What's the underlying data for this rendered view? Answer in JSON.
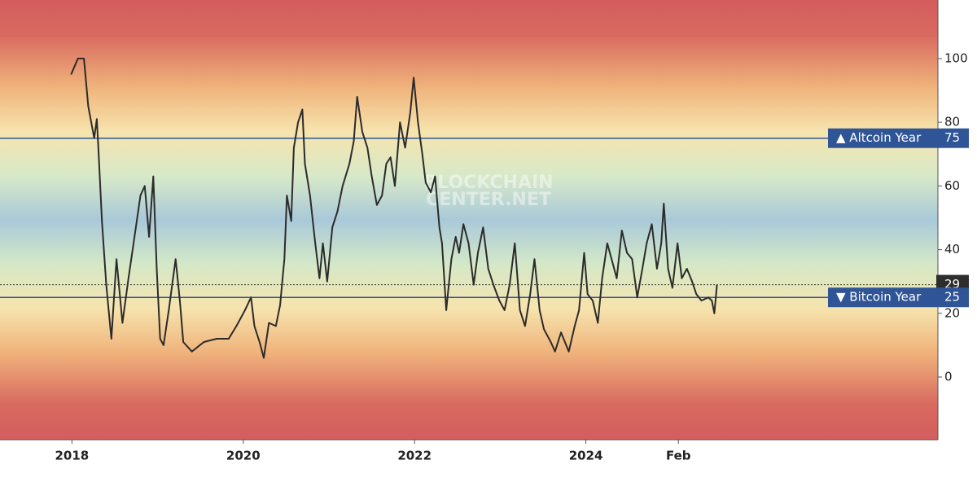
{
  "chart_data": {
    "type": "line",
    "watermark": [
      "BLOCKCHAIN",
      "CENTER.NET"
    ],
    "x": [
      2017.99,
      2018.07,
      2018.14,
      2018.19,
      2018.26,
      2018.29,
      2018.31,
      2018.35,
      2018.4,
      2018.46,
      2018.52,
      2018.59,
      2018.66,
      2018.73,
      2018.8,
      2018.85,
      2018.9,
      2018.95,
      2018.99,
      2019.03,
      2019.07,
      2019.13,
      2019.21,
      2019.26,
      2019.3,
      2019.4,
      2019.54,
      2019.69,
      2019.83,
      2019.92,
      2020.02,
      2020.09,
      2020.13,
      2020.19,
      2020.24,
      2020.3,
      2020.38,
      2020.43,
      2020.48,
      2020.51,
      2020.56,
      2020.59,
      2020.64,
      2020.69,
      2020.72,
      2020.78,
      2020.84,
      2020.89,
      2020.93,
      2020.98,
      2021.04,
      2021.1,
      2021.16,
      2021.24,
      2021.29,
      2021.33,
      2021.39,
      2021.45,
      2021.5,
      2021.56,
      2021.62,
      2021.67,
      2021.72,
      2021.77,
      2021.83,
      2021.89,
      2021.95,
      2021.99,
      2022.04,
      2022.09,
      2022.13,
      2022.19,
      2022.24,
      2022.29,
      2022.32,
      2022.37,
      2022.43,
      2022.48,
      2022.52,
      2022.57,
      2022.63,
      2022.69,
      2022.74,
      2022.8,
      2022.86,
      2022.92,
      2022.99,
      2023.05,
      2023.11,
      2023.17,
      2023.23,
      2023.29,
      2023.35,
      2023.4,
      2023.46,
      2023.51,
      2023.59,
      2023.64,
      2023.71,
      2023.8,
      2023.87,
      2023.92,
      2023.98,
      2024.02,
      2024.08,
      2024.14,
      2024.19,
      2024.25,
      2024.3,
      2024.36,
      2024.42,
      2024.48,
      2024.54,
      2024.6,
      2024.66,
      2024.71,
      2024.77,
      2024.83,
      2024.88,
      2024.91,
      2024.96,
      2025.01,
      2025.07,
      2025.12,
      2025.18,
      2025.24,
      2025.29,
      2025.35,
      2025.43,
      2025.47,
      2025.5,
      2025.53
    ],
    "values": [
      95,
      100,
      100,
      85,
      75,
      81,
      71,
      49,
      29,
      12,
      37,
      17,
      31,
      44,
      57,
      60,
      44,
      63,
      34,
      12,
      10,
      21,
      37,
      24,
      11,
      8,
      11,
      12,
      12,
      16,
      21,
      25,
      16,
      11,
      6,
      17,
      16,
      22.5,
      37,
      57,
      49,
      72,
      80,
      84,
      67,
      57,
      42,
      31,
      42,
      30,
      47,
      52,
      60,
      67,
      74,
      88,
      77,
      72,
      63,
      54,
      57,
      67,
      69,
      60,
      80,
      72,
      83,
      94,
      80,
      70,
      61,
      58,
      63,
      47,
      42,
      21,
      37,
      44,
      39,
      48,
      42,
      29,
      39,
      47,
      34,
      29,
      24,
      21,
      29,
      42,
      21,
      16,
      26,
      37,
      21,
      15,
      11,
      8,
      14,
      8,
      16,
      21,
      39,
      26,
      24,
      17,
      31,
      42,
      37,
      31,
      46,
      39,
      37,
      25,
      34,
      42,
      48,
      34,
      42,
      54.5,
      34,
      28,
      42,
      31,
      34,
      30,
      26,
      24,
      25,
      24,
      20,
      29
    ],
    "color": "#2b2b2b",
    "xlim": [
      2017.16,
      2028.11
    ],
    "xticks": [
      2018,
      2020,
      2022,
      2024,
      {
        "value": 2025.08,
        "label": "Feb"
      }
    ],
    "ylim": [
      -19.7,
      118.4
    ],
    "yticks": [
      0,
      20,
      40,
      60,
      80,
      100
    ],
    "reference_lines": [
      {
        "value": 75,
        "label": "▲ Altcoin Year",
        "color": "#2f5597"
      },
      {
        "value": 25,
        "label": "▼ Bitcoin Year",
        "color": "#2f5597"
      }
    ]
  }
}
